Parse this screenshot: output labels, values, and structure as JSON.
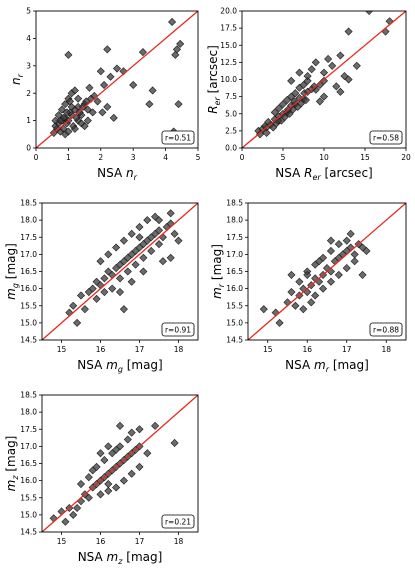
{
  "chart_data": [
    {
      "type": "scatter",
      "xlabel": "NSA n",
      "xlabel_sub": "r",
      "ylabel": "n",
      "ylabel_sub": "r",
      "xlim": [
        0,
        5
      ],
      "ylim": [
        0,
        5
      ],
      "xticks": [
        "0",
        "1",
        "2",
        "3",
        "4",
        "5"
      ],
      "yticks": [
        "0",
        "1",
        "2",
        "3",
        "4",
        "5"
      ],
      "annotation": "r=0.51",
      "one_to_one_line": true,
      "points": [
        [
          0.6,
          0.8
        ],
        [
          0.7,
          0.9
        ],
        [
          0.8,
          1.0
        ],
        [
          0.9,
          1.1
        ],
        [
          1.0,
          1.0
        ],
        [
          1.1,
          1.2
        ],
        [
          0.75,
          0.6
        ],
        [
          0.85,
          0.7
        ],
        [
          0.95,
          0.9
        ],
        [
          1.05,
          1.3
        ],
        [
          1.15,
          0.8
        ],
        [
          1.2,
          1.4
        ],
        [
          1.3,
          1.5
        ],
        [
          1.4,
          1.2
        ],
        [
          1.5,
          1.6
        ],
        [
          1.6,
          1.4
        ],
        [
          1.7,
          1.8
        ],
        [
          0.9,
          1.6
        ],
        [
          0.8,
          1.4
        ],
        [
          1.0,
          1.8
        ],
        [
          1.1,
          2.0
        ],
        [
          1.2,
          2.1
        ],
        [
          1.3,
          1.0
        ],
        [
          1.4,
          0.9
        ],
        [
          0.7,
          1.2
        ],
        [
          0.6,
          1.0
        ],
        [
          0.65,
          0.7
        ],
        [
          0.9,
          0.5
        ],
        [
          1.0,
          0.6
        ],
        [
          1.2,
          0.7
        ],
        [
          1.25,
          1.1
        ],
        [
          1.35,
          1.3
        ],
        [
          1.45,
          1.5
        ],
        [
          1.55,
          1.7
        ],
        [
          1.0,
          3.4
        ],
        [
          2.0,
          2.8
        ],
        [
          2.1,
          2.3
        ],
        [
          2.3,
          2.6
        ],
        [
          2.5,
          2.9
        ],
        [
          2.7,
          2.8
        ],
        [
          2.2,
          1.5
        ],
        [
          2.4,
          1.1
        ],
        [
          3.0,
          2.3
        ],
        [
          3.3,
          3.5
        ],
        [
          3.5,
          1.6
        ],
        [
          3.6,
          2.1
        ],
        [
          4.2,
          4.6
        ],
        [
          4.3,
          3.4
        ],
        [
          4.35,
          3.6
        ],
        [
          4.4,
          1.6
        ],
        [
          4.25,
          0.6
        ],
        [
          4.45,
          3.8
        ],
        [
          2.2,
          3.6
        ],
        [
          1.8,
          1.9
        ],
        [
          1.9,
          1.7
        ],
        [
          1.65,
          2.2
        ],
        [
          1.75,
          1.3
        ],
        [
          0.55,
          0.55
        ],
        [
          1.5,
          0.8
        ],
        [
          1.6,
          1.0
        ],
        [
          1.1,
          1.5
        ],
        [
          0.95,
          1.3
        ],
        [
          1.05,
          1.7
        ],
        [
          0.85,
          1.1
        ],
        [
          0.75,
          1.0
        ],
        [
          1.3,
          1.8
        ],
        [
          2.05,
          1.3
        ]
      ]
    },
    {
      "type": "scatter",
      "xlabel": "NSA R",
      "xlabel_sub": "er",
      "xlabel_unit": "[arcsec]",
      "ylabel": "R",
      "ylabel_sub": "er",
      "ylabel_unit": "[arcsec]",
      "xlim": [
        0,
        20
      ],
      "ylim": [
        0,
        20
      ],
      "xticks": [
        "0",
        "5",
        "10",
        "15",
        "20"
      ],
      "yticks": [
        "0.0",
        "2.5",
        "5.0",
        "7.5",
        "10.0",
        "12.5",
        "15.0",
        "17.5",
        "20.0"
      ],
      "annotation": "r=0.58",
      "one_to_one_line": true,
      "points": [
        [
          2.0,
          2.5
        ],
        [
          2.5,
          2.8
        ],
        [
          3.0,
          3.0
        ],
        [
          3.5,
          3.4
        ],
        [
          4.0,
          4.2
        ],
        [
          4.5,
          4.6
        ],
        [
          5.0,
          5.0
        ],
        [
          5.5,
          5.2
        ],
        [
          6.0,
          6.2
        ],
        [
          6.5,
          6.4
        ],
        [
          7.0,
          7.3
        ],
        [
          7.5,
          7.1
        ],
        [
          8.0,
          8.2
        ],
        [
          8.5,
          8.6
        ],
        [
          9.0,
          8.5
        ],
        [
          9.5,
          9.2
        ],
        [
          10.0,
          9.8
        ],
        [
          3.0,
          2.2
        ],
        [
          3.8,
          3.0
        ],
        [
          4.2,
          3.6
        ],
        [
          4.8,
          4.0
        ],
        [
          5.2,
          4.5
        ],
        [
          5.8,
          5.0
        ],
        [
          6.2,
          5.6
        ],
        [
          6.8,
          6.0
        ],
        [
          7.2,
          6.5
        ],
        [
          7.8,
          7.0
        ],
        [
          4.0,
          5.2
        ],
        [
          4.5,
          5.8
        ],
        [
          5.0,
          6.4
        ],
        [
          5.5,
          7.0
        ],
        [
          6.0,
          7.5
        ],
        [
          6.5,
          8.0
        ],
        [
          7.0,
          8.8
        ],
        [
          7.5,
          9.2
        ],
        [
          8.0,
          9.8
        ],
        [
          6.0,
          9.8
        ],
        [
          7.0,
          11.0
        ],
        [
          8.0,
          10.5
        ],
        [
          8.5,
          11.5
        ],
        [
          9.0,
          12.5
        ],
        [
          10.0,
          11.0
        ],
        [
          10.5,
          13.0
        ],
        [
          11.0,
          12.0
        ],
        [
          11.5,
          9.0
        ],
        [
          12.0,
          13.5
        ],
        [
          12.5,
          10.5
        ],
        [
          13.0,
          10.0
        ],
        [
          10.0,
          7.5
        ],
        [
          9.5,
          6.8
        ],
        [
          13.0,
          17.0
        ],
        [
          15.5,
          20.0
        ],
        [
          17.5,
          17.0
        ],
        [
          18.0,
          18.5
        ],
        [
          14.0,
          12.0
        ],
        [
          12.0,
          8.2
        ],
        [
          3.2,
          3.8
        ],
        [
          2.8,
          3.2
        ],
        [
          2.2,
          2.0
        ],
        [
          4.4,
          4.0
        ],
        [
          5.6,
          5.6
        ],
        [
          6.4,
          6.8
        ],
        [
          7.6,
          8.0
        ],
        [
          8.8,
          9.0
        ]
      ]
    },
    {
      "type": "scatter",
      "xlabel": "NSA m",
      "xlabel_sub": "g",
      "xlabel_unit": "[mag]",
      "ylabel": "m",
      "ylabel_sub": "g",
      "ylabel_unit": "[mag]",
      "xlim": [
        14.5,
        18.5
      ],
      "ylim": [
        14.5,
        18.5
      ],
      "xticks": [
        "15",
        "16",
        "17",
        "18"
      ],
      "yticks": [
        "14.5",
        "15.0",
        "15.5",
        "16.0",
        "16.5",
        "17.0",
        "17.5",
        "18.0",
        "18.5"
      ],
      "annotation": "r=0.91",
      "one_to_one_line": true,
      "points": [
        [
          15.3,
          15.5
        ],
        [
          15.5,
          15.8
        ],
        [
          15.7,
          15.9
        ],
        [
          15.8,
          16.0
        ],
        [
          15.9,
          16.2
        ],
        [
          16.0,
          16.1
        ],
        [
          16.1,
          16.3
        ],
        [
          16.2,
          16.5
        ],
        [
          16.3,
          16.4
        ],
        [
          16.4,
          16.6
        ],
        [
          16.5,
          16.7
        ],
        [
          16.6,
          16.8
        ],
        [
          16.7,
          16.9
        ],
        [
          16.8,
          17.0
        ],
        [
          16.9,
          17.1
        ],
        [
          17.0,
          17.2
        ],
        [
          17.1,
          17.3
        ],
        [
          17.2,
          17.4
        ],
        [
          17.3,
          17.5
        ],
        [
          17.4,
          17.6
        ],
        [
          17.5,
          17.7
        ],
        [
          17.6,
          17.5
        ],
        [
          17.7,
          17.8
        ],
        [
          17.8,
          17.9
        ],
        [
          17.9,
          17.6
        ],
        [
          18.0,
          17.4
        ],
        [
          15.6,
          15.4
        ],
        [
          15.9,
          15.7
        ],
        [
          16.1,
          15.9
        ],
        [
          16.3,
          16.0
        ],
        [
          16.5,
          16.3
        ],
        [
          16.7,
          16.5
        ],
        [
          16.9,
          16.7
        ],
        [
          17.1,
          16.9
        ],
        [
          17.3,
          17.1
        ],
        [
          17.5,
          17.3
        ],
        [
          16.0,
          16.8
        ],
        [
          16.2,
          17.0
        ],
        [
          16.4,
          17.2
        ],
        [
          16.6,
          17.4
        ],
        [
          16.8,
          17.6
        ],
        [
          17.0,
          17.8
        ],
        [
          17.2,
          18.0
        ],
        [
          17.4,
          18.1
        ],
        [
          16.5,
          15.9
        ],
        [
          16.8,
          16.2
        ],
        [
          17.1,
          16.5
        ],
        [
          17.6,
          16.8
        ],
        [
          17.8,
          16.9
        ],
        [
          15.4,
          15.0
        ],
        [
          15.2,
          15.3
        ],
        [
          16.6,
          15.4
        ],
        [
          17.0,
          17.5
        ],
        [
          17.5,
          18.0
        ],
        [
          17.8,
          18.2
        ]
      ]
    },
    {
      "type": "scatter",
      "xlabel": "NSA m",
      "xlabel_sub": "r",
      "xlabel_unit": "[mag]",
      "ylabel": "m",
      "ylabel_sub": "r",
      "ylabel_unit": "[mag]",
      "xlim": [
        14.5,
        18.5
      ],
      "ylim": [
        14.5,
        18.5
      ],
      "xticks": [
        "15",
        "16",
        "17",
        "18"
      ],
      "yticks": [
        "14.5",
        "15.0",
        "15.5",
        "16.0",
        "16.5",
        "17.0",
        "17.5",
        "18.0",
        "18.5"
      ],
      "annotation": "r=0.88",
      "one_to_one_line": true,
      "points": [
        [
          14.9,
          15.4
        ],
        [
          15.2,
          15.3
        ],
        [
          15.3,
          15.0
        ],
        [
          15.5,
          15.6
        ],
        [
          15.7,
          15.5
        ],
        [
          15.8,
          15.8
        ],
        [
          15.9,
          16.0
        ],
        [
          16.0,
          15.9
        ],
        [
          16.1,
          16.1
        ],
        [
          16.2,
          16.3
        ],
        [
          16.3,
          16.2
        ],
        [
          16.4,
          16.4
        ],
        [
          16.5,
          16.6
        ],
        [
          16.6,
          16.5
        ],
        [
          16.7,
          16.8
        ],
        [
          16.8,
          16.9
        ],
        [
          16.9,
          17.0
        ],
        [
          17.0,
          17.1
        ],
        [
          17.1,
          17.2
        ],
        [
          17.2,
          17.0
        ],
        [
          17.3,
          17.3
        ],
        [
          17.4,
          17.2
        ],
        [
          16.0,
          16.5
        ],
        [
          16.2,
          16.7
        ],
        [
          16.4,
          16.9
        ],
        [
          16.6,
          17.1
        ],
        [
          16.8,
          17.3
        ],
        [
          17.0,
          17.4
        ],
        [
          16.2,
          15.8
        ],
        [
          16.4,
          16.0
        ],
        [
          16.6,
          16.2
        ],
        [
          16.8,
          16.4
        ],
        [
          17.0,
          16.6
        ],
        [
          17.2,
          16.8
        ],
        [
          15.9,
          15.4
        ],
        [
          16.1,
          15.6
        ],
        [
          15.6,
          15.9
        ],
        [
          15.8,
          16.2
        ],
        [
          16.0,
          16.4
        ],
        [
          16.3,
          16.8
        ],
        [
          16.6,
          17.4
        ],
        [
          17.1,
          17.6
        ],
        [
          17.4,
          16.4
        ],
        [
          17.5,
          17.1
        ],
        [
          15.6,
          16.4
        ]
      ]
    },
    {
      "type": "scatter",
      "xlabel": "NSA m",
      "xlabel_sub": "z",
      "xlabel_unit": "[mag]",
      "ylabel": "m",
      "ylabel_sub": "z",
      "ylabel_unit": "[mag]",
      "xlim": [
        14.5,
        18.5
      ],
      "ylim": [
        14.5,
        18.5
      ],
      "xticks": [
        "15",
        "16",
        "17",
        "18"
      ],
      "yticks": [
        "14.5",
        "15.0",
        "15.5",
        "16.0",
        "16.5",
        "17.0",
        "17.5",
        "18.0",
        "18.5"
      ],
      "annotation": "r=0.21",
      "one_to_one_line": true,
      "points": [
        [
          14.8,
          14.9
        ],
        [
          15.0,
          15.1
        ],
        [
          15.2,
          15.2
        ],
        [
          15.3,
          15.0
        ],
        [
          15.5,
          15.4
        ],
        [
          15.6,
          15.6
        ],
        [
          15.7,
          15.5
        ],
        [
          15.8,
          15.8
        ],
        [
          15.9,
          15.9
        ],
        [
          16.0,
          16.0
        ],
        [
          16.1,
          16.1
        ],
        [
          16.2,
          16.2
        ],
        [
          16.3,
          16.3
        ],
        [
          16.4,
          16.4
        ],
        [
          16.5,
          16.5
        ],
        [
          16.6,
          16.6
        ],
        [
          16.7,
          16.7
        ],
        [
          16.8,
          16.8
        ],
        [
          16.9,
          16.9
        ],
        [
          17.0,
          17.0
        ],
        [
          15.5,
          15.9
        ],
        [
          15.7,
          16.1
        ],
        [
          15.9,
          16.4
        ],
        [
          16.1,
          16.6
        ],
        [
          16.3,
          16.8
        ],
        [
          16.5,
          17.0
        ],
        [
          16.7,
          17.2
        ],
        [
          16.2,
          15.9
        ],
        [
          16.4,
          15.8
        ],
        [
          16.6,
          16.0
        ],
        [
          16.8,
          16.2
        ],
        [
          17.0,
          16.4
        ],
        [
          15.4,
          15.2
        ],
        [
          15.1,
          14.8
        ],
        [
          16.0,
          15.6
        ],
        [
          16.2,
          15.7
        ],
        [
          15.8,
          16.3
        ],
        [
          16.0,
          16.8
        ],
        [
          16.2,
          17.0
        ],
        [
          16.5,
          17.6
        ],
        [
          17.0,
          17.5
        ],
        [
          17.2,
          16.8
        ],
        [
          17.4,
          17.6
        ],
        [
          17.9,
          17.1
        ],
        [
          16.8,
          17.4
        ],
        [
          16.4,
          16.9
        ]
      ]
    }
  ]
}
